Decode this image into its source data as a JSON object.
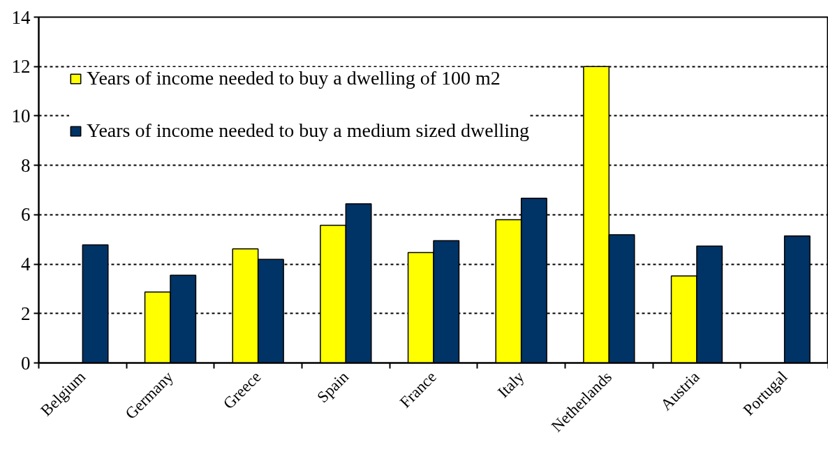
{
  "chart_data": {
    "type": "bar",
    "categories": [
      "Belgium",
      "Germany",
      "Greece",
      "Spain",
      "France",
      "Italy",
      "Netherlands",
      "Austria",
      "Portugal"
    ],
    "series": [
      {
        "name": "Years of income needed to buy a dwelling of 100 m2",
        "color": "#ffff00",
        "values": [
          null,
          2.87,
          4.62,
          5.57,
          4.47,
          5.8,
          12.0,
          3.52,
          null
        ]
      },
      {
        "name": "Years of income needed to buy a medium sized dwelling",
        "color": "#003366",
        "values": [
          4.78,
          3.55,
          4.19,
          6.44,
          4.95,
          6.67,
          5.19,
          4.73,
          5.14
        ]
      }
    ],
    "ylim": [
      0,
      14
    ],
    "yticks": [
      0,
      2,
      4,
      6,
      8,
      10,
      12,
      14
    ],
    "grid": "y",
    "legend": "top left"
  }
}
